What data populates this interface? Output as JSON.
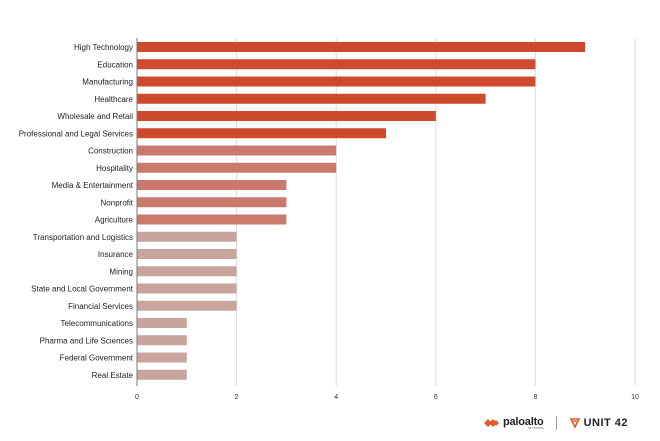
{
  "chart_data": {
    "type": "bar",
    "orientation": "horizontal",
    "categories": [
      "High Technology",
      "Education",
      "Manufacturing",
      "Healthcare",
      "Wholesale and Retail",
      "Professional and Legal Services",
      "Construction",
      "Hospitality",
      "Media & Entertainment",
      "Nonprofit",
      "Agriculture",
      "Transportation and Logistics",
      "Insurance",
      "Mining",
      "State and Local Government",
      "Financial Services",
      "Telecommunications",
      "Pharma and Life Sciences",
      "Federal Government",
      "Real Estate"
    ],
    "values": [
      9,
      8,
      8,
      7,
      6,
      5,
      4,
      4,
      3,
      3,
      3,
      2,
      2,
      2,
      2,
      2,
      1,
      1,
      1,
      1
    ],
    "xlim": [
      0,
      10
    ],
    "xticks": [
      "0",
      "2",
      "4",
      "6",
      "8",
      "10"
    ],
    "grid": true,
    "legend": "none",
    "colors": {
      "high": "#cf4a2d",
      "mid": "#c97a6d",
      "low": "#c9a49d",
      "grid": "#dddddd",
      "axis": "#777777"
    }
  },
  "footer": {
    "brand_left": "paloalto",
    "brand_left_sub": "NETWORKS",
    "brand_right": "UNIT 42"
  }
}
